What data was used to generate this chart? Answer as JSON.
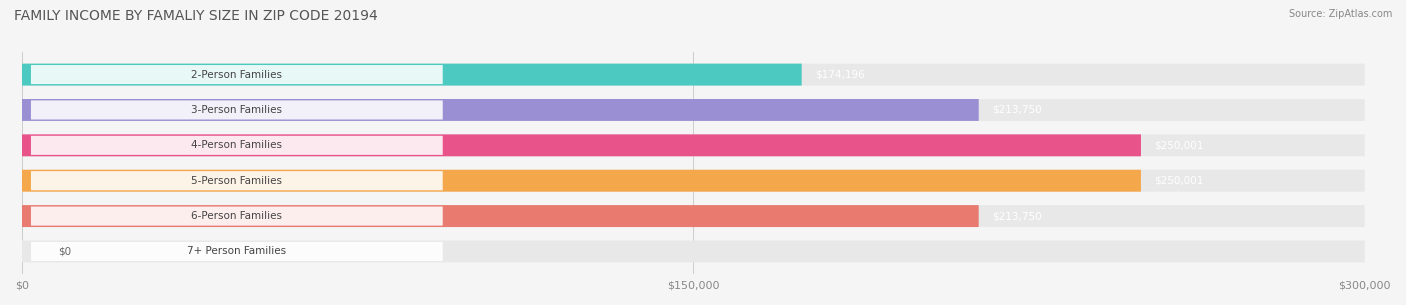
{
  "title": "FAMILY INCOME BY FAMALIY SIZE IN ZIP CODE 20194",
  "source": "Source: ZipAtlas.com",
  "categories": [
    "2-Person Families",
    "3-Person Families",
    "4-Person Families",
    "5-Person Families",
    "6-Person Families",
    "7+ Person Families"
  ],
  "values": [
    174196,
    213750,
    250001,
    250001,
    213750,
    0
  ],
  "bar_colors": [
    "#4CC9C0",
    "#9B8FD4",
    "#E8538A",
    "#F5A84B",
    "#E87A70",
    "#A8C4E0"
  ],
  "value_labels": [
    "$174,196",
    "$213,750",
    "$250,001",
    "$250,001",
    "$213,750",
    "$0"
  ],
  "xlim": [
    0,
    300000
  ],
  "xticks": [
    0,
    150000,
    300000
  ],
  "xtick_labels": [
    "$0",
    "$150,000",
    "$300,000"
  ],
  "bg_color": "#f5f5f5",
  "bar_bg_color": "#e8e8e8",
  "label_font_size": 7.5,
  "value_font_size": 7.5,
  "title_font_size": 10
}
